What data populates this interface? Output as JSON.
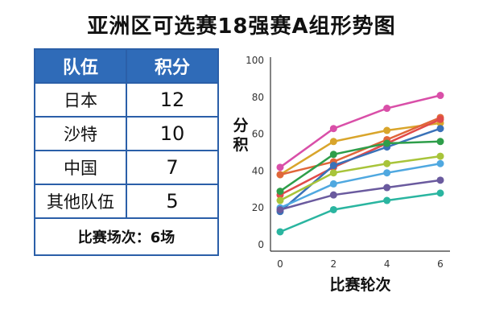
{
  "title": "亚洲区可选赛18强赛A组形势图",
  "standings": {
    "headers": [
      "队伍",
      "积分"
    ],
    "rows": [
      {
        "team": "日本",
        "points": "12"
      },
      {
        "team": "沙特",
        "points": "10"
      },
      {
        "team": "中国",
        "points": "7"
      },
      {
        "team": "其他队伍",
        "points": "5"
      }
    ],
    "footer": "比赛场次：6场"
  },
  "chart_data": {
    "type": "line",
    "xlabel": "比赛轮次",
    "ylabel": "分积",
    "x": [
      0,
      2,
      4,
      6
    ],
    "xticks": [
      "0",
      "2",
      "4",
      "6"
    ],
    "yticks": [
      "0",
      "20",
      "40",
      "60",
      "80",
      "100"
    ],
    "ylim": [
      0,
      100
    ],
    "xlim": [
      0,
      6
    ],
    "grid": false,
    "series": [
      {
        "color": "#d94fa8",
        "values": [
          42,
          63,
          74,
          81
        ]
      },
      {
        "color": "#d9a52b",
        "values": [
          38,
          56,
          62,
          66
        ]
      },
      {
        "color": "#e0663a",
        "values": [
          38,
          45,
          57,
          69
        ]
      },
      {
        "color": "#e04a4a",
        "values": [
          27,
          42,
          55,
          68
        ]
      },
      {
        "color": "#3a72b8",
        "values": [
          18,
          43,
          53,
          63
        ]
      },
      {
        "color": "#2e9e4a",
        "values": [
          29,
          49,
          55,
          56
        ]
      },
      {
        "color": "#a8c43a",
        "values": [
          24,
          39,
          44,
          48
        ]
      },
      {
        "color": "#4fa8e0",
        "values": [
          20,
          33,
          39,
          44
        ]
      },
      {
        "color": "#6a5a9e",
        "values": [
          19,
          27,
          31,
          35
        ]
      },
      {
        "color": "#2ab5a0",
        "values": [
          7,
          19,
          24,
          28
        ]
      }
    ]
  }
}
